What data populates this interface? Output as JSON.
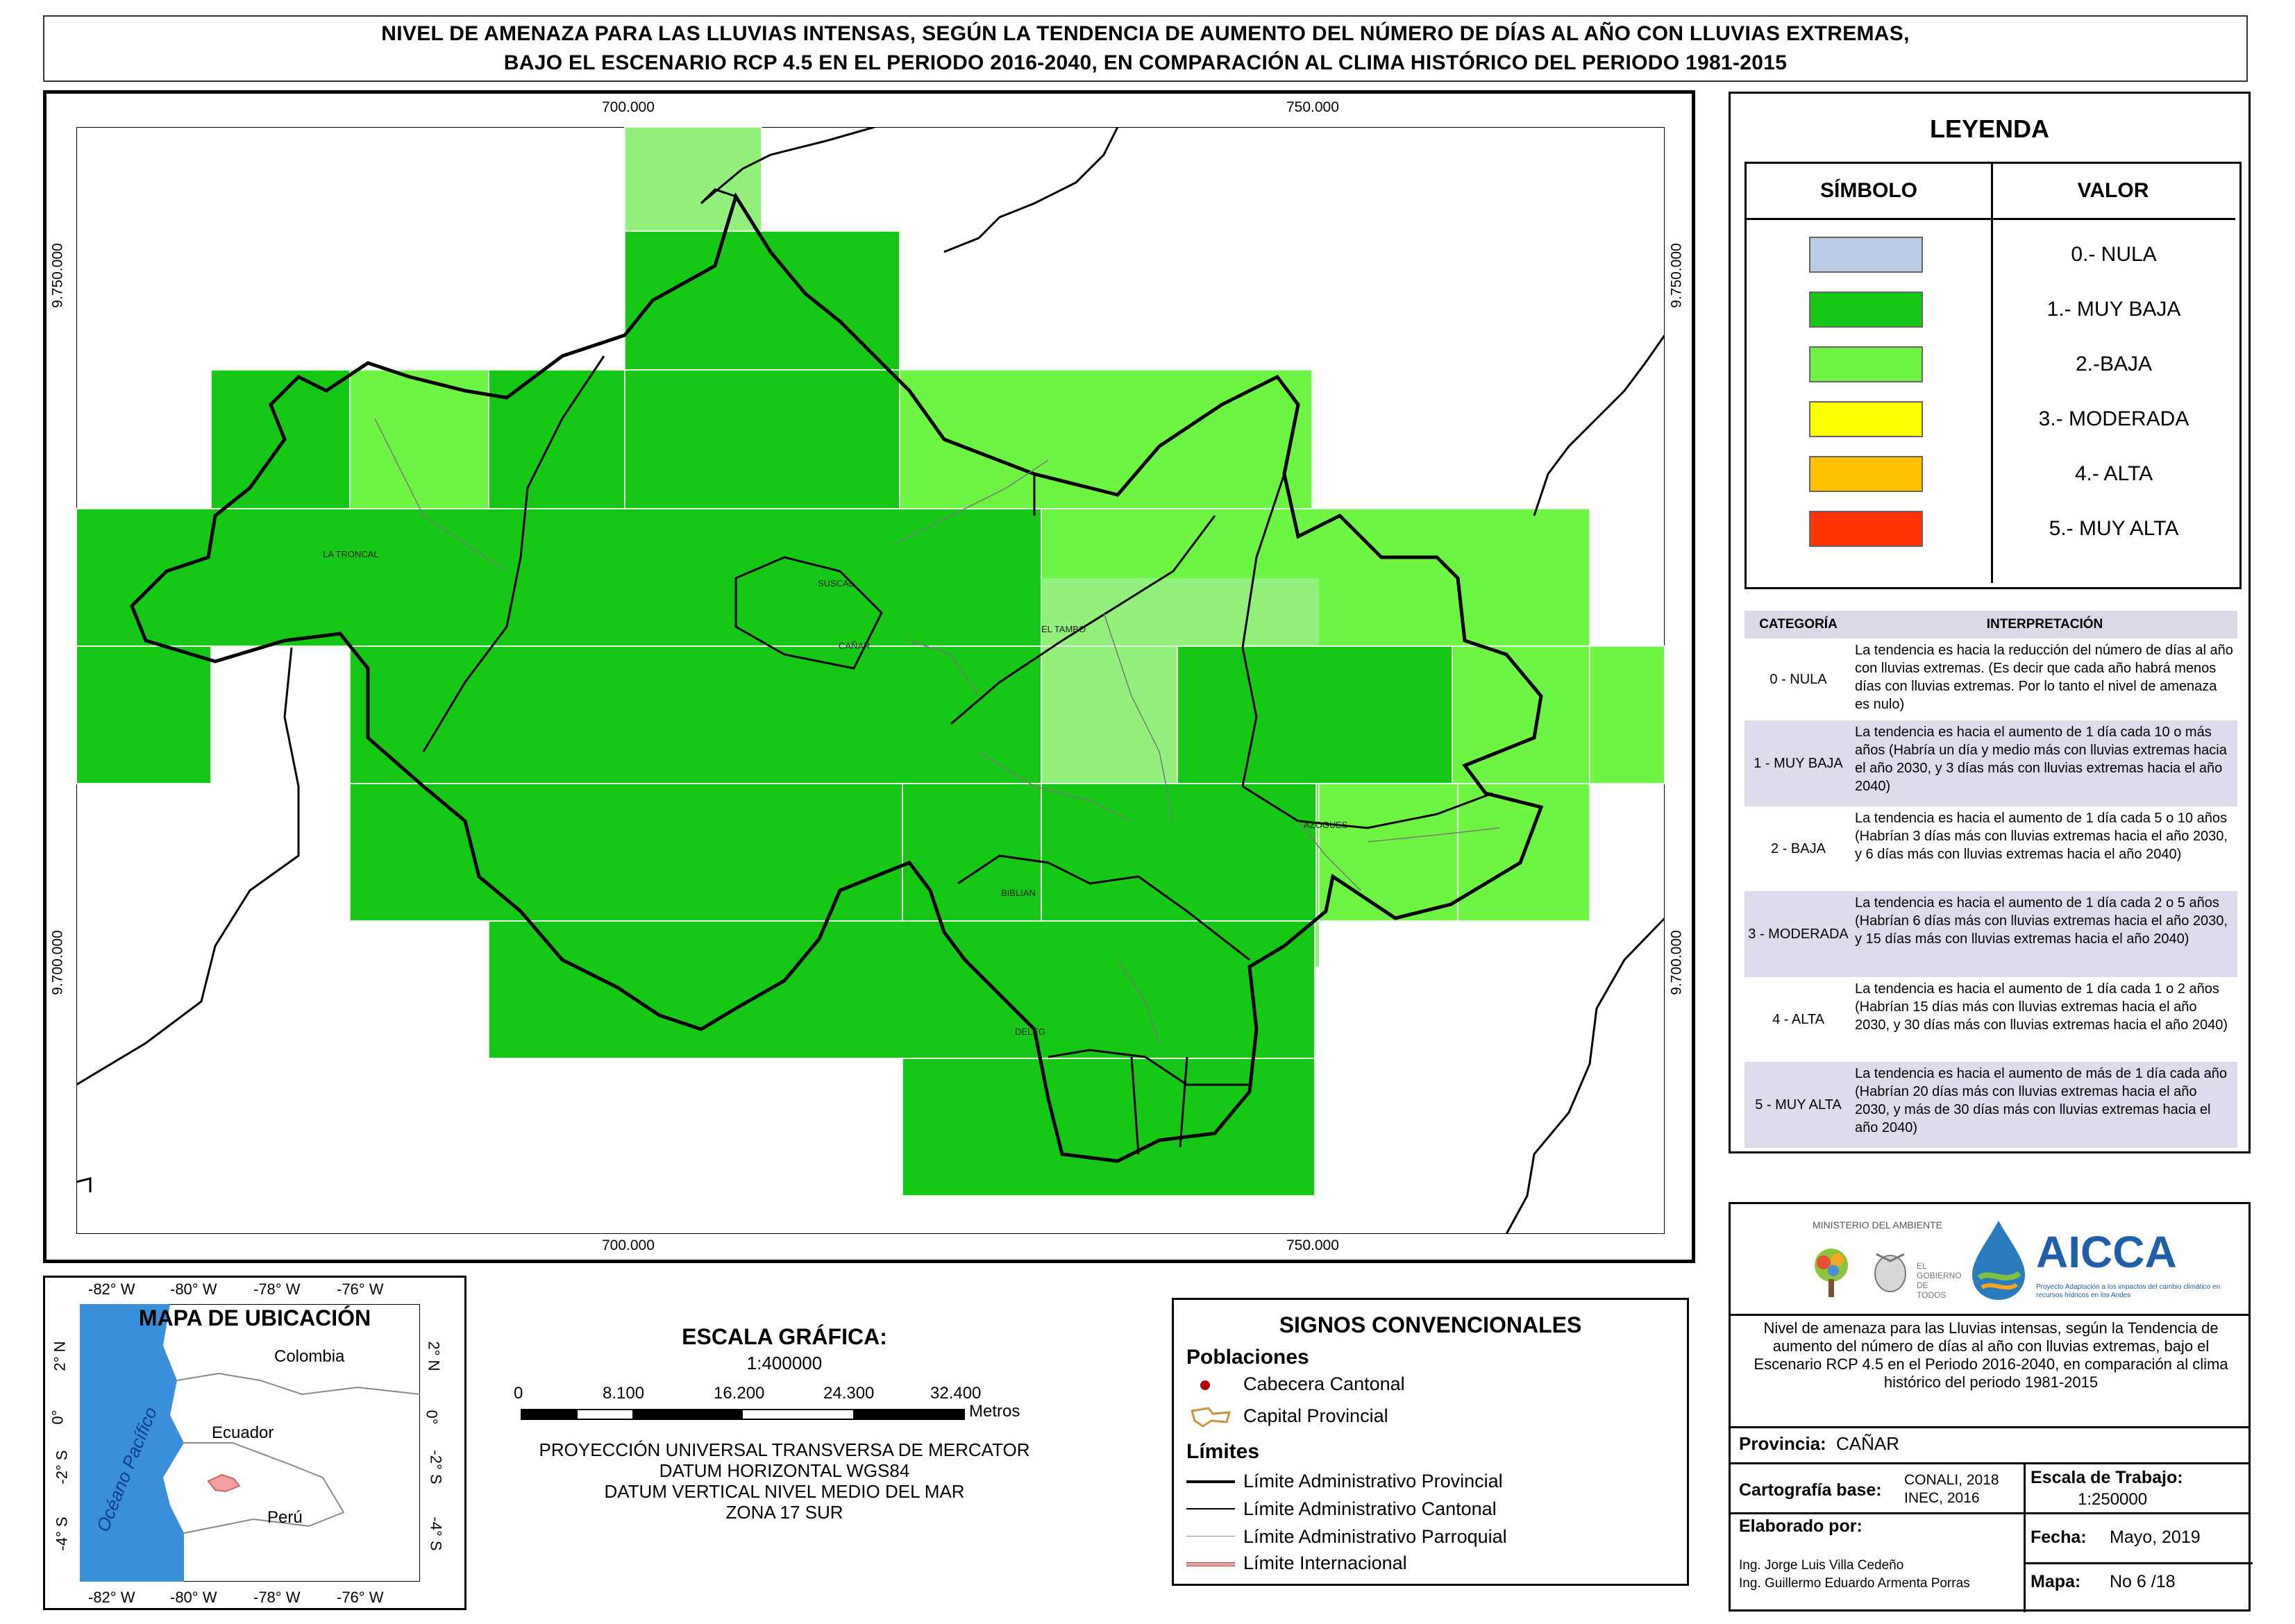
{
  "title": {
    "line1": "NIVEL DE AMENAZA PARA LAS LLUVIAS INTENSAS, SEGÚN LA TENDENCIA DE AUMENTO DEL NÚMERO DE DÍAS AL AÑO CON LLUVIAS EXTREMAS,",
    "line2": "BAJO EL ESCENARIO RCP 4.5 EN EL PERIODO 2016-2040, EN COMPARACIÓN AL CLIMA HISTÓRICO DEL PERIODO 1981-2015"
  },
  "map": {
    "x_ticks": [
      "700.000",
      "750.000"
    ],
    "y_ticks": [
      "9.750.000",
      "9.700.000"
    ],
    "place_labels": [
      "LA TRONCAL",
      "SUSCAL",
      "EL TAMBO",
      "CAÑAR",
      "AZOGUES",
      "BIBLIAN",
      "DELEG"
    ],
    "colors": {
      "muy_baja": "#16c716",
      "baja": "#6ef442",
      "baja_light": "#93f07c"
    }
  },
  "legend": {
    "title": "LEYENDA",
    "col_symbol": "SÍMBOLO",
    "col_value": "VALOR",
    "items": [
      {
        "label": "0.- NULA",
        "color": "#b9cde5"
      },
      {
        "label": "1.- MUY BAJA",
        "color": "#16c716"
      },
      {
        "label": "2.-BAJA",
        "color": "#6ef442"
      },
      {
        "label": "3.- MODERADA",
        "color": "#ffff00"
      },
      {
        "label": "4.- ALTA",
        "color": "#ffc000"
      },
      {
        "label": "5.- MUY ALTA",
        "color": "#ff3300"
      }
    ],
    "interp_head_cat": "CATEGORÍA",
    "interp_head_txt": "INTERPRETACIÓN",
    "interp": [
      {
        "cat": "0 - NULA",
        "txt": "La tendencia es hacia la reducción del número de días al año con lluvias extremas. (Es decir que cada año habrá menos días con lluvias extremas. Por lo tanto el nivel de amenaza es nulo)"
      },
      {
        "cat": "1 - MUY BAJA",
        "txt": "La tendencia es hacia el aumento de 1 día cada 10 o más años (Habría un día y medio más con lluvias extremas hacia el año 2030, y 3 días más con lluvias extremas hacia el año 2040)"
      },
      {
        "cat": "2 - BAJA",
        "txt": "La tendencia es hacia el aumento de 1 día cada 5 o 10 años (Habrían 3 días más con lluvias extremas hacia el año 2030, y 6 días más con lluvias extremas hacia el año 2040)"
      },
      {
        "cat": "3 - MODERADA",
        "txt": "La tendencia es hacia el aumento de 1 día cada 2 o 5 años (Habrían 6 días más con lluvias extremas hacia el año 2030, y 15 días más con lluvias extremas hacia el año 2040)"
      },
      {
        "cat": "4 - ALTA",
        "txt": "La tendencia es hacia el aumento de 1 día cada 1 o 2 años (Habrían 15 días más con lluvias extremas hacia el año 2030, y 30 días más con lluvias extremas hacia el año 2040)"
      },
      {
        "cat": "5 - MUY ALTA",
        "txt": "La tendencia es hacia el aumento de más de 1 día cada año (Habrían 20 días más con lluvias extremas hacia el año 2030, y más de 30 días más con lluvias extremas hacia el año 2040)"
      }
    ]
  },
  "inset": {
    "title": "MAPA DE UBICACIÓN",
    "lon_ticks": [
      "-82° W",
      "-80° W",
      "-78° W",
      "-76° W"
    ],
    "lat_ticks": [
      "2° N",
      "0°",
      "-2° S",
      "-4° S"
    ],
    "countries": [
      "Colombia",
      "Ecuador",
      "Perú"
    ],
    "ocean": "Océano Pacífico"
  },
  "scale": {
    "title": "ESCALA GRÁFICA:",
    "ratio": "1:400000",
    "ticks": [
      "0",
      "8.100",
      "16.200",
      "24.300",
      "32.400"
    ],
    "unit": "Metros",
    "proj1": "PROYECCIÓN UNIVERSAL TRANSVERSA DE MERCATOR",
    "proj2": "DATUM HORIZONTAL WGS84",
    "proj3": "DATUM VERTICAL NIVEL MEDIO DEL MAR",
    "proj4": "ZONA 17 SUR"
  },
  "signs": {
    "title": "SIGNOS CONVENCIONALES",
    "poblaciones": "Poblaciones",
    "cabecera": "Cabecera Cantonal",
    "capital": "Capital Provincial",
    "limites": "Límites",
    "lim_prov": "Límite Administrativo Provincial",
    "lim_cant": "Límite Administrativo Cantonal",
    "lim_parr": "Límite Administrativo Parroquial",
    "lim_int": "Límite Internacional"
  },
  "info": {
    "ministerio": "MINISTERIO DEL AMBIENTE",
    "gobierno": "EL GOBIERNO DE TODOS",
    "aicca": "AICCA",
    "aicca_sub": "Proyecto Adaptación a los impactos del cambio climático en recursos hídricos en los Andes",
    "description": "Nivel de amenaza para las Lluvias intensas, según la Tendencia de aumento del número de días al año con lluvias extremas, bajo el Escenario RCP 4.5 en el Periodo 2016-2040, en comparación al clima histórico del periodo 1981-2015",
    "provincia_label": "Provincia:",
    "provincia": "CAÑAR",
    "cartografia_label": "Cartografía base:",
    "cartografia1": "CONALI, 2018",
    "cartografia2": "INEC, 2016",
    "escala_label": "Escala de Trabajo:",
    "escala": "1:250000",
    "elaborado_label": "Elaborado por:",
    "autor1": "Ing. Jorge Luis Villa Cedeño",
    "autor2": "Ing. Guillermo Eduardo Armenta Porras",
    "fecha_label": "Fecha:",
    "fecha": "Mayo, 2019",
    "mapa_label": "Mapa:",
    "mapa": "No 6 /18"
  }
}
